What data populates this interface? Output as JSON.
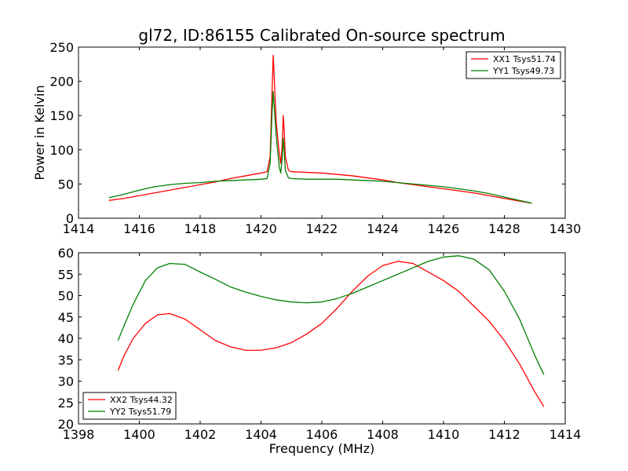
{
  "chart_data": [
    {
      "type": "line",
      "title": "gl72, ID:86155 Calibrated On-source spectrum",
      "xlabel": "",
      "ylabel": "Power in Kelvin",
      "xlim": [
        1414,
        1430
      ],
      "ylim": [
        0,
        250
      ],
      "xticks": [
        1414,
        1416,
        1418,
        1420,
        1422,
        1424,
        1426,
        1428,
        1430
      ],
      "yticks": [
        0,
        50,
        100,
        150,
        200,
        250
      ],
      "legend_position": "top-right",
      "grid": false,
      "series": [
        {
          "name": "XX1 Tsys51.74",
          "color": "#ff0000",
          "points": [
            [
              1415,
              26
            ],
            [
              1415.5,
              29
            ],
            [
              1416,
              33
            ],
            [
              1416.5,
              37
            ],
            [
              1417,
              41
            ],
            [
              1417.5,
              45
            ],
            [
              1418,
              49
            ],
            [
              1418.5,
              53
            ],
            [
              1419,
              58
            ],
            [
              1419.5,
              62
            ],
            [
              1420,
              66
            ],
            [
              1420.2,
              68
            ],
            [
              1420.3,
              90
            ],
            [
              1420.36,
              180
            ],
            [
              1420.4,
              238
            ],
            [
              1420.44,
              200
            ],
            [
              1420.5,
              140
            ],
            [
              1420.6,
              95
            ],
            [
              1420.65,
              80
            ],
            [
              1420.7,
              110
            ],
            [
              1420.73,
              150
            ],
            [
              1420.76,
              130
            ],
            [
              1420.8,
              90
            ],
            [
              1420.9,
              70
            ],
            [
              1421,
              68
            ],
            [
              1421.5,
              67
            ],
            [
              1422,
              66
            ],
            [
              1422.5,
              64
            ],
            [
              1423,
              62
            ],
            [
              1423.5,
              59
            ],
            [
              1424,
              56
            ],
            [
              1424.5,
              52
            ],
            [
              1425,
              49
            ],
            [
              1425.5,
              46
            ],
            [
              1426,
              43
            ],
            [
              1426.5,
              40
            ],
            [
              1427,
              37
            ],
            [
              1427.5,
              33
            ],
            [
              1428,
              29
            ],
            [
              1428.5,
              25
            ],
            [
              1428.9,
              22
            ]
          ]
        },
        {
          "name": "YY1 Tsys49.73",
          "color": "#008000",
          "points": [
            [
              1415,
              30
            ],
            [
              1415.5,
              35
            ],
            [
              1416,
              41
            ],
            [
              1416.5,
              46
            ],
            [
              1417,
              49
            ],
            [
              1417.5,
              51
            ],
            [
              1418,
              52
            ],
            [
              1418.5,
              54
            ],
            [
              1419,
              55
            ],
            [
              1419.5,
              56
            ],
            [
              1420,
              57
            ],
            [
              1420.2,
              58
            ],
            [
              1420.3,
              80
            ],
            [
              1420.36,
              150
            ],
            [
              1420.4,
              185
            ],
            [
              1420.44,
              160
            ],
            [
              1420.5,
              120
            ],
            [
              1420.6,
              75
            ],
            [
              1420.65,
              66
            ],
            [
              1420.7,
              90
            ],
            [
              1420.73,
              117
            ],
            [
              1420.76,
              100
            ],
            [
              1420.8,
              70
            ],
            [
              1420.9,
              59
            ],
            [
              1421,
              58
            ],
            [
              1421.5,
              57
            ],
            [
              1422,
              57
            ],
            [
              1422.5,
              57
            ],
            [
              1423,
              56
            ],
            [
              1423.5,
              55
            ],
            [
              1424,
              54
            ],
            [
              1424.5,
              52
            ],
            [
              1425,
              50
            ],
            [
              1425.5,
              48
            ],
            [
              1426,
              46
            ],
            [
              1426.5,
              43
            ],
            [
              1427,
              40
            ],
            [
              1427.5,
              36
            ],
            [
              1428,
              31
            ],
            [
              1428.5,
              26
            ],
            [
              1428.9,
              22
            ]
          ]
        }
      ]
    },
    {
      "type": "line",
      "title": "",
      "xlabel": "Frequency (MHz)",
      "ylabel": "",
      "xlim": [
        1398,
        1414
      ],
      "ylim": [
        20,
        60
      ],
      "xticks": [
        1398,
        1400,
        1402,
        1404,
        1406,
        1408,
        1410,
        1412,
        1414
      ],
      "yticks": [
        20,
        25,
        30,
        35,
        40,
        45,
        50,
        55,
        60
      ],
      "legend_position": "bottom-left",
      "grid": false,
      "series": [
        {
          "name": "XX2 Tsys44.32",
          "color": "#ff0000",
          "points": [
            [
              1399.3,
              32.5
            ],
            [
              1399.5,
              36
            ],
            [
              1399.8,
              40
            ],
            [
              1400.2,
              43.5
            ],
            [
              1400.6,
              45.5
            ],
            [
              1401,
              45.8
            ],
            [
              1401.5,
              44.5
            ],
            [
              1402,
              42
            ],
            [
              1402.5,
              39.5
            ],
            [
              1403,
              38
            ],
            [
              1403.5,
              37.2
            ],
            [
              1404,
              37.2
            ],
            [
              1404.5,
              37.8
            ],
            [
              1405,
              39
            ],
            [
              1405.5,
              41
            ],
            [
              1406,
              43.5
            ],
            [
              1406.5,
              47
            ],
            [
              1407,
              51
            ],
            [
              1407.5,
              54.5
            ],
            [
              1408,
              57
            ],
            [
              1408.5,
              58
            ],
            [
              1409,
              57.5
            ],
            [
              1409.5,
              55.5
            ],
            [
              1410,
              53.5
            ],
            [
              1410.5,
              51
            ],
            [
              1411,
              47.5
            ],
            [
              1411.5,
              44
            ],
            [
              1412,
              39.5
            ],
            [
              1412.5,
              34
            ],
            [
              1413,
              27.5
            ],
            [
              1413.3,
              24
            ]
          ]
        },
        {
          "name": "YY2 Tsys51.79",
          "color": "#008000",
          "points": [
            [
              1399.3,
              39.5
            ],
            [
              1399.5,
              43
            ],
            [
              1399.8,
              48
            ],
            [
              1400.2,
              53.5
            ],
            [
              1400.6,
              56.5
            ],
            [
              1401,
              57.5
            ],
            [
              1401.5,
              57.3
            ],
            [
              1402,
              55.5
            ],
            [
              1402.5,
              53.8
            ],
            [
              1403,
              52
            ],
            [
              1403.5,
              50.8
            ],
            [
              1404,
              49.8
            ],
            [
              1404.5,
              49
            ],
            [
              1405,
              48.5
            ],
            [
              1405.5,
              48.3
            ],
            [
              1406,
              48.5
            ],
            [
              1406.5,
              49.3
            ],
            [
              1407,
              50.5
            ],
            [
              1407.5,
              52
            ],
            [
              1408,
              53.5
            ],
            [
              1408.5,
              55
            ],
            [
              1409,
              56.5
            ],
            [
              1409.5,
              58
            ],
            [
              1410,
              59
            ],
            [
              1410.5,
              59.3
            ],
            [
              1411,
              58.5
            ],
            [
              1411.5,
              56
            ],
            [
              1412,
              51
            ],
            [
              1412.5,
              44.5
            ],
            [
              1413,
              36
            ],
            [
              1413.3,
              31.5
            ]
          ]
        }
      ]
    }
  ]
}
